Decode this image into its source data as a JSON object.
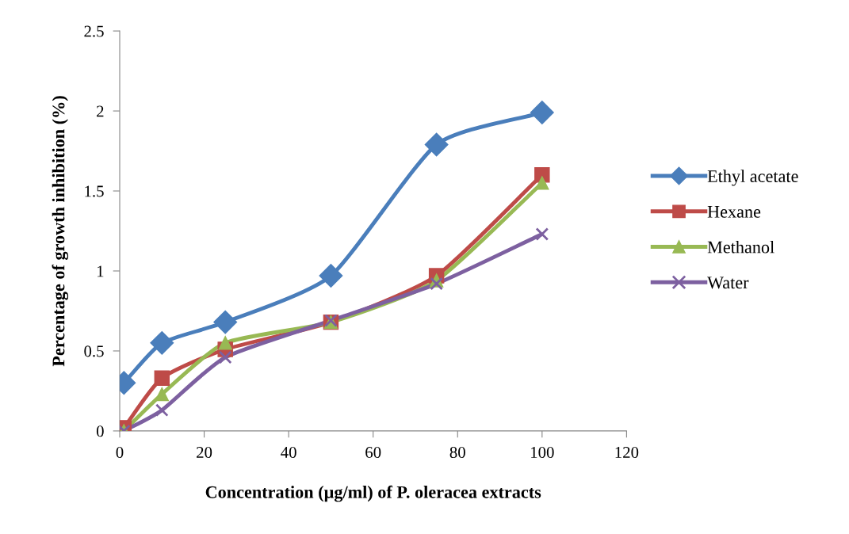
{
  "chart_data": {
    "type": "line",
    "xlabel": "Concentration (µg/ml) of P. oleracea extracts",
    "ylabel": "Percentage of growth inhibition (%)",
    "x": [
      1,
      10,
      25,
      50,
      75,
      100
    ],
    "series": [
      {
        "name": "Ethyl acetate",
        "color": "#4a7ebb",
        "marker": "diamond",
        "values": [
          0.3,
          0.55,
          0.68,
          0.97,
          1.79,
          1.99
        ]
      },
      {
        "name": "Hexane",
        "color": "#be4b48",
        "marker": "square",
        "values": [
          0.02,
          0.33,
          0.51,
          0.68,
          0.97,
          1.6
        ]
      },
      {
        "name": "Methanol",
        "color": "#98b954",
        "marker": "triangle",
        "values": [
          0.0,
          0.23,
          0.55,
          0.68,
          0.94,
          1.55
        ]
      },
      {
        "name": "Water",
        "color": "#7d60a0",
        "marker": "cross",
        "values": [
          0.0,
          0.13,
          0.46,
          0.69,
          0.92,
          1.23
        ]
      }
    ],
    "xlim": [
      0,
      120
    ],
    "xticks": [
      0,
      20,
      40,
      60,
      80,
      100,
      120
    ],
    "ylim": [
      0,
      2.5
    ],
    "yticks": [
      0,
      0.5,
      1,
      1.5,
      2,
      2.5
    ],
    "grid": false,
    "legend": "right",
    "line_style": "solid"
  }
}
